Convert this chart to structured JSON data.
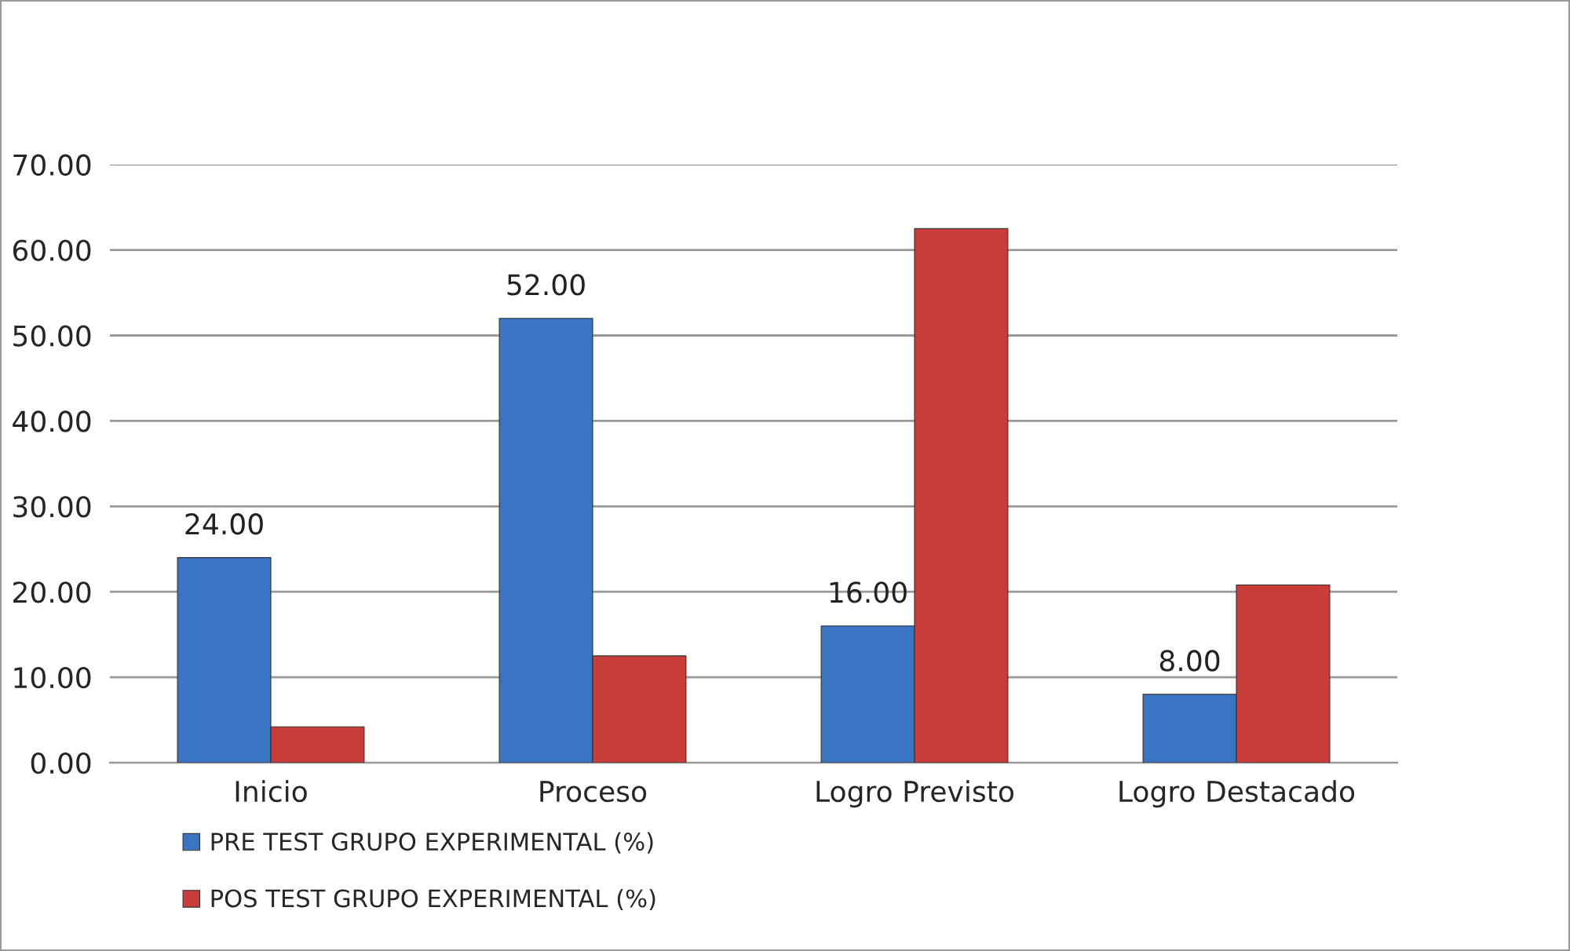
{
  "chart_data": {
    "type": "bar",
    "categories": [
      "Inicio",
      "Proceso",
      "Logro Previsto",
      "Logro Destacado"
    ],
    "series": [
      {
        "name": "PRE TEST GRUPO EXPERIMENTAL (%)",
        "color": "#3a75c4",
        "values": [
          24.0,
          52.0,
          16.0,
          8.0
        ],
        "value_labels": [
          "24.00",
          "52.00",
          "16.00",
          "8.00"
        ]
      },
      {
        "name": "POS TEST GRUPO EXPERIMENTAL (%)",
        "color": "#c83c3a",
        "values": [
          4.2,
          12.5,
          62.5,
          20.8
        ]
      }
    ],
    "ylim": [
      0,
      70
    ],
    "yticks": [
      {
        "value": 0,
        "label": "0.00"
      },
      {
        "value": 10,
        "label": "10.00"
      },
      {
        "value": 20,
        "label": "20.00"
      },
      {
        "value": 30,
        "label": "30.00"
      },
      {
        "value": 40,
        "label": "40.00"
      },
      {
        "value": 50,
        "label": "50.00"
      },
      {
        "value": 60,
        "label": "60.00"
      },
      {
        "value": 70,
        "label": "70.00"
      }
    ],
    "grid": "y",
    "legend": "bottom left"
  }
}
